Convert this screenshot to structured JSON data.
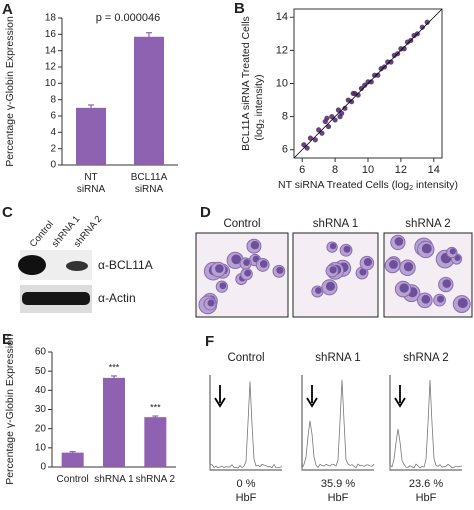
{
  "chart_data": [
    {
      "type": "bar",
      "panel": "A",
      "annotation": "p = 0.000046",
      "ylabel": "Percentage γ-Globin Expression",
      "categories": [
        "NT\nsiRNA",
        "BCL11A\nsiRNA"
      ],
      "values": [
        7.0,
        15.7
      ],
      "errors": [
        0.35,
        0.5
      ],
      "color": "#8e62b0",
      "ylim": [
        0,
        18
      ],
      "yticks": [
        0,
        2,
        4,
        6,
        8,
        10,
        12,
        14,
        16,
        18
      ]
    },
    {
      "type": "scatter",
      "panel": "B",
      "xlabel": [
        "NT siRNA Treated Cells (log",
        "2",
        " intensity)"
      ],
      "ylabel": [
        "BCL11A siRNA Treated Cells",
        "(log",
        "2",
        " intensity)"
      ],
      "x": [
        6.1,
        6.3,
        6.5,
        6.8,
        7.0,
        7.2,
        7.4,
        7.6,
        7.8,
        8.0,
        8.2,
        8.4,
        8.6,
        8.8,
        9.0,
        9.2,
        9.4,
        9.6,
        9.8,
        10.0,
        10.2,
        10.4,
        10.6,
        10.8,
        11.0,
        11.2,
        11.4,
        11.6,
        11.8,
        12.0,
        12.2,
        12.4,
        12.6,
        12.8,
        13.0,
        13.3,
        13.6,
        7.5,
        8.3,
        9.1
      ],
      "y": [
        6.3,
        6.1,
        6.7,
        6.6,
        7.2,
        7.0,
        7.7,
        7.4,
        8.0,
        7.8,
        8.4,
        8.2,
        8.5,
        9.0,
        8.9,
        9.4,
        9.3,
        9.7,
        9.9,
        10.1,
        10.1,
        10.5,
        10.5,
        10.9,
        11.0,
        11.3,
        11.3,
        11.7,
        11.8,
        12.1,
        12.1,
        12.5,
        12.6,
        12.9,
        13.0,
        13.4,
        13.7,
        7.9,
        8.0,
        9.4
      ],
      "color": "#4b2463",
      "xlim": [
        5.5,
        14.5
      ],
      "ylim": [
        5.5,
        14.5
      ],
      "xticks": [
        6,
        8,
        10,
        12,
        14
      ],
      "yticks": [
        6,
        8,
        10,
        12,
        14
      ]
    },
    {
      "type": "bar",
      "panel": "E",
      "ylabel": "Percentage γ-Globin Expression",
      "categories": [
        "Control",
        "shRNA 1",
        "shRNA 2"
      ],
      "values": [
        7.5,
        46.5,
        26
      ],
      "errors": [
        0.5,
        1,
        0.6
      ],
      "significance": [
        null,
        "***",
        "***"
      ],
      "color": "#8e62b0",
      "ylim": [
        0,
        60
      ],
      "yticks": [
        0,
        10,
        20,
        30,
        40,
        50,
        60
      ]
    }
  ],
  "blot": {
    "panel": "C",
    "lanes": [
      "Control",
      "shRNA 1",
      "shRNA 2"
    ],
    "antibodies": [
      "α-BCL11A",
      "α-Actin"
    ]
  },
  "micrographs": {
    "panel": "D",
    "labels": [
      "Control",
      "shRNA 1",
      "shRNA 2"
    ]
  },
  "flow": {
    "panel": "F",
    "samples": [
      {
        "label": "Control",
        "hbf": "0 %",
        "marker": "HbF"
      },
      {
        "label": "shRNA 1",
        "hbf": "35.9 %",
        "marker": "HbF"
      },
      {
        "label": "shRNA 2",
        "hbf": "23.6 %",
        "marker": "HbF"
      }
    ]
  }
}
